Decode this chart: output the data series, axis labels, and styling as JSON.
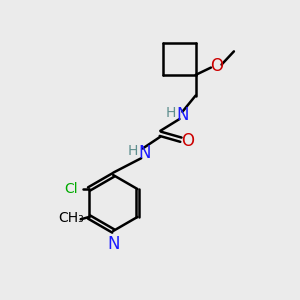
{
  "bg_color": "#ebebeb",
  "bond_color": "#000000",
  "N_color": "#1a1aff",
  "O_color": "#cc0000",
  "Cl_color": "#00aa00",
  "H_color": "#5f8f8f",
  "line_width": 1.8,
  "font_size": 12,
  "small_font": 10,
  "figsize": [
    3.0,
    3.0
  ],
  "dpi": 100,
  "xlim": [
    0,
    10
  ],
  "ylim": [
    0,
    10
  ]
}
